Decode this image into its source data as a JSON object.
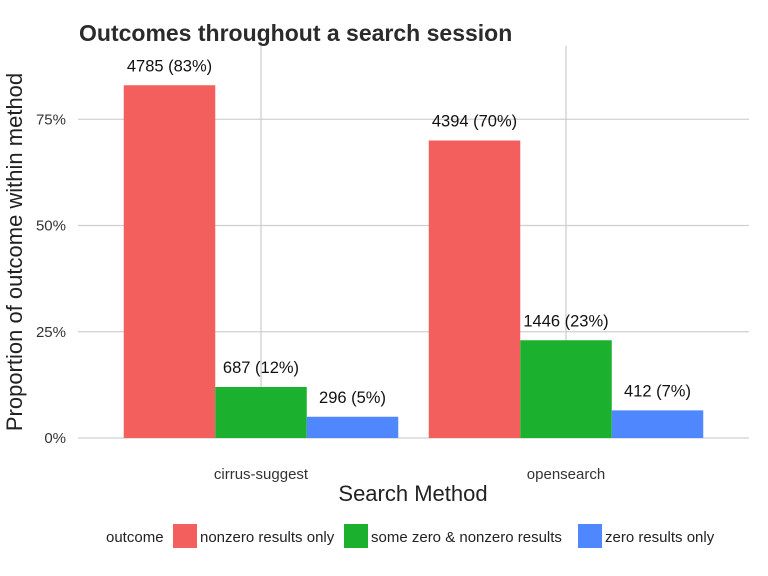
{
  "chart_data": {
    "type": "bar",
    "title": "Outcomes throughout a search session",
    "xlabel": "Search Method",
    "ylabel": "Proportion of outcome within method",
    "categories": [
      "cirrus-suggest",
      "opensearch"
    ],
    "ylim": [
      0,
      0.9
    ],
    "y_ticks": [
      0,
      0.25,
      0.5,
      0.75
    ],
    "y_tick_labels": [
      "0%",
      "25%",
      "50%",
      "75%"
    ],
    "grid": true,
    "legend_position": "bottom",
    "legend_title": "outcome",
    "series": [
      {
        "name": "nonzero results only",
        "color": "#F25F5C",
        "values": [
          0.83,
          0.7
        ],
        "labels": [
          "4785 (83%)",
          "4394 (70%)"
        ]
      },
      {
        "name": "some zero & nonzero results",
        "color": "#1BB12E",
        "values": [
          0.12,
          0.23
        ],
        "labels": [
          "687 (12%)",
          "1446 (23%)"
        ]
      },
      {
        "name": "zero results only",
        "color": "#4F87FF",
        "values": [
          0.05,
          0.065
        ],
        "labels": [
          "296 (5%)",
          "412 (7%)"
        ]
      }
    ]
  }
}
